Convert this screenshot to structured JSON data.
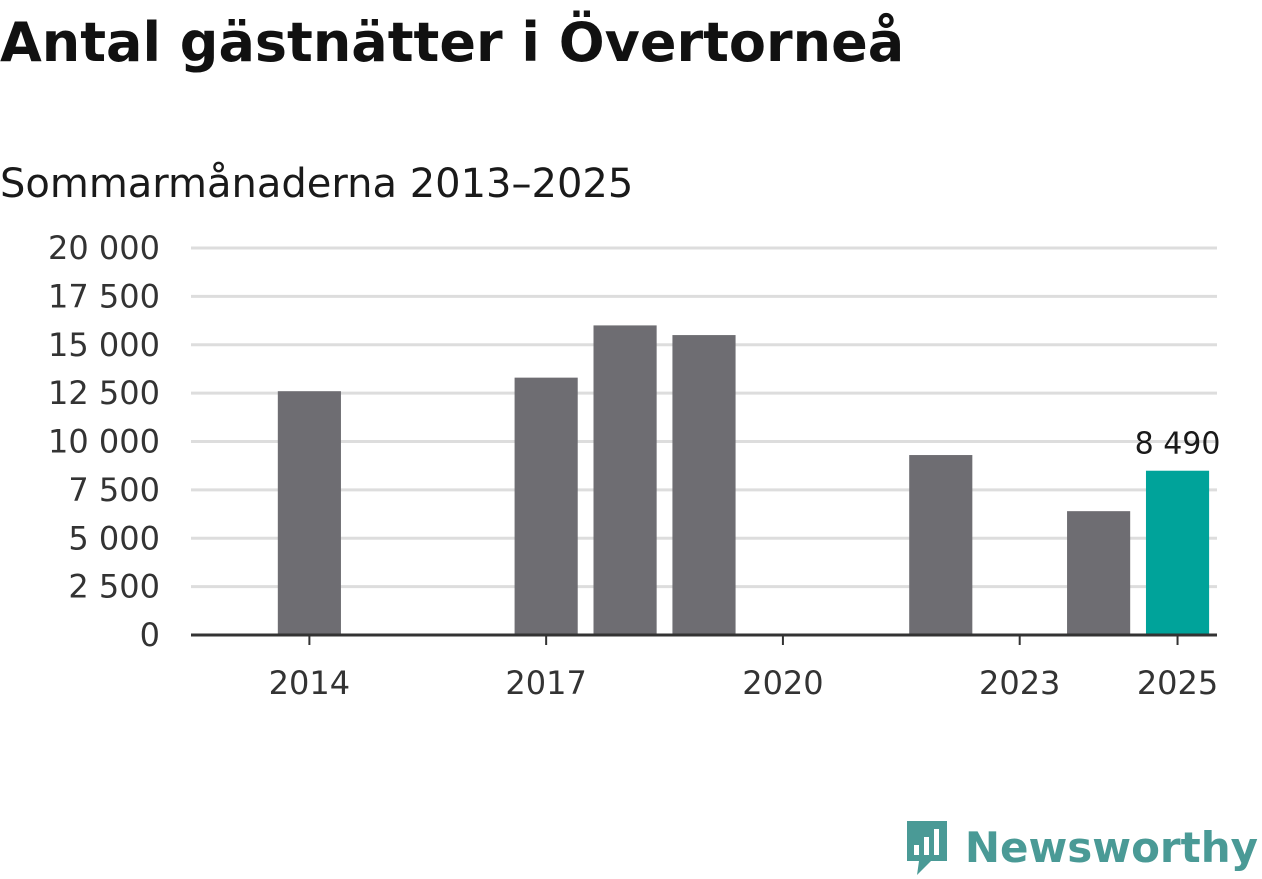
{
  "title": "Antal gästnätter i Övertorneå",
  "subtitle": "Sommarmånaderna 2013–2025",
  "brand": {
    "name": "Newsworthy",
    "color": "#4a9a96",
    "icon": "newsworthy-logo-icon"
  },
  "colors": {
    "bar": "#6e6d72",
    "highlight": "#00a39a",
    "grid": "#dddddd",
    "axis": "#333333"
  },
  "chart_data": {
    "type": "bar",
    "categories": [
      "2013",
      "2014",
      "2015",
      "2016",
      "2017",
      "2018",
      "2019",
      "2020",
      "2021",
      "2022",
      "2023",
      "2024",
      "2025"
    ],
    "values": [
      null,
      12600,
      null,
      null,
      13300,
      16000,
      15500,
      null,
      null,
      9300,
      null,
      6400,
      8490
    ],
    "highlight_category": "2025",
    "data_labels": [
      {
        "category": "2025",
        "text": "8 490"
      }
    ],
    "xticks": [
      "2014",
      "2017",
      "2020",
      "2023",
      "2025"
    ],
    "yticks": [
      {
        "value": 0,
        "label": "0"
      },
      {
        "value": 2500,
        "label": "2 500"
      },
      {
        "value": 5000,
        "label": "5 000"
      },
      {
        "value": 7500,
        "label": "7 500"
      },
      {
        "value": 10000,
        "label": "10 000"
      },
      {
        "value": 12500,
        "label": "12 500"
      },
      {
        "value": 15000,
        "label": "15 000"
      },
      {
        "value": 17500,
        "label": "17 500"
      },
      {
        "value": 20000,
        "label": "20 000"
      }
    ],
    "ylim": [
      0,
      20000
    ],
    "grid": true,
    "title": "Antal gästnätter i Övertorneå",
    "subtitle": "Sommarmånaderna 2013–2025",
    "xlabel": "",
    "ylabel": ""
  }
}
